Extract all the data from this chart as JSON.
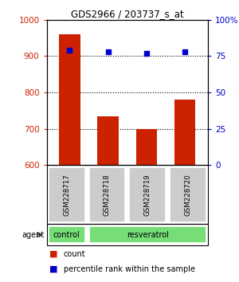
{
  "title": "GDS2966 / 203737_s_at",
  "samples": [
    "GSM228717",
    "GSM228718",
    "GSM228719",
    "GSM228720"
  ],
  "counts": [
    960,
    735,
    700,
    780
  ],
  "percentiles": [
    79,
    78,
    77,
    78
  ],
  "ylim_left": [
    600,
    1000
  ],
  "ylim_right": [
    0,
    100
  ],
  "yticks_left": [
    600,
    700,
    800,
    900,
    1000
  ],
  "yticks_right": [
    0,
    25,
    50,
    75,
    100
  ],
  "yticklabels_right": [
    "0",
    "25",
    "50",
    "75",
    "100%"
  ],
  "bar_color": "#cc2200",
  "dot_color": "#0000cc",
  "bar_width": 0.55,
  "agent_labels": [
    "control",
    "resveratrol"
  ],
  "agent_color": "#77dd77",
  "sample_box_color": "#cccccc",
  "background_color": "#ffffff",
  "legend_items": [
    {
      "color": "#cc2200",
      "label": "count"
    },
    {
      "color": "#0000cc",
      "label": "percentile rank within the sample"
    }
  ]
}
